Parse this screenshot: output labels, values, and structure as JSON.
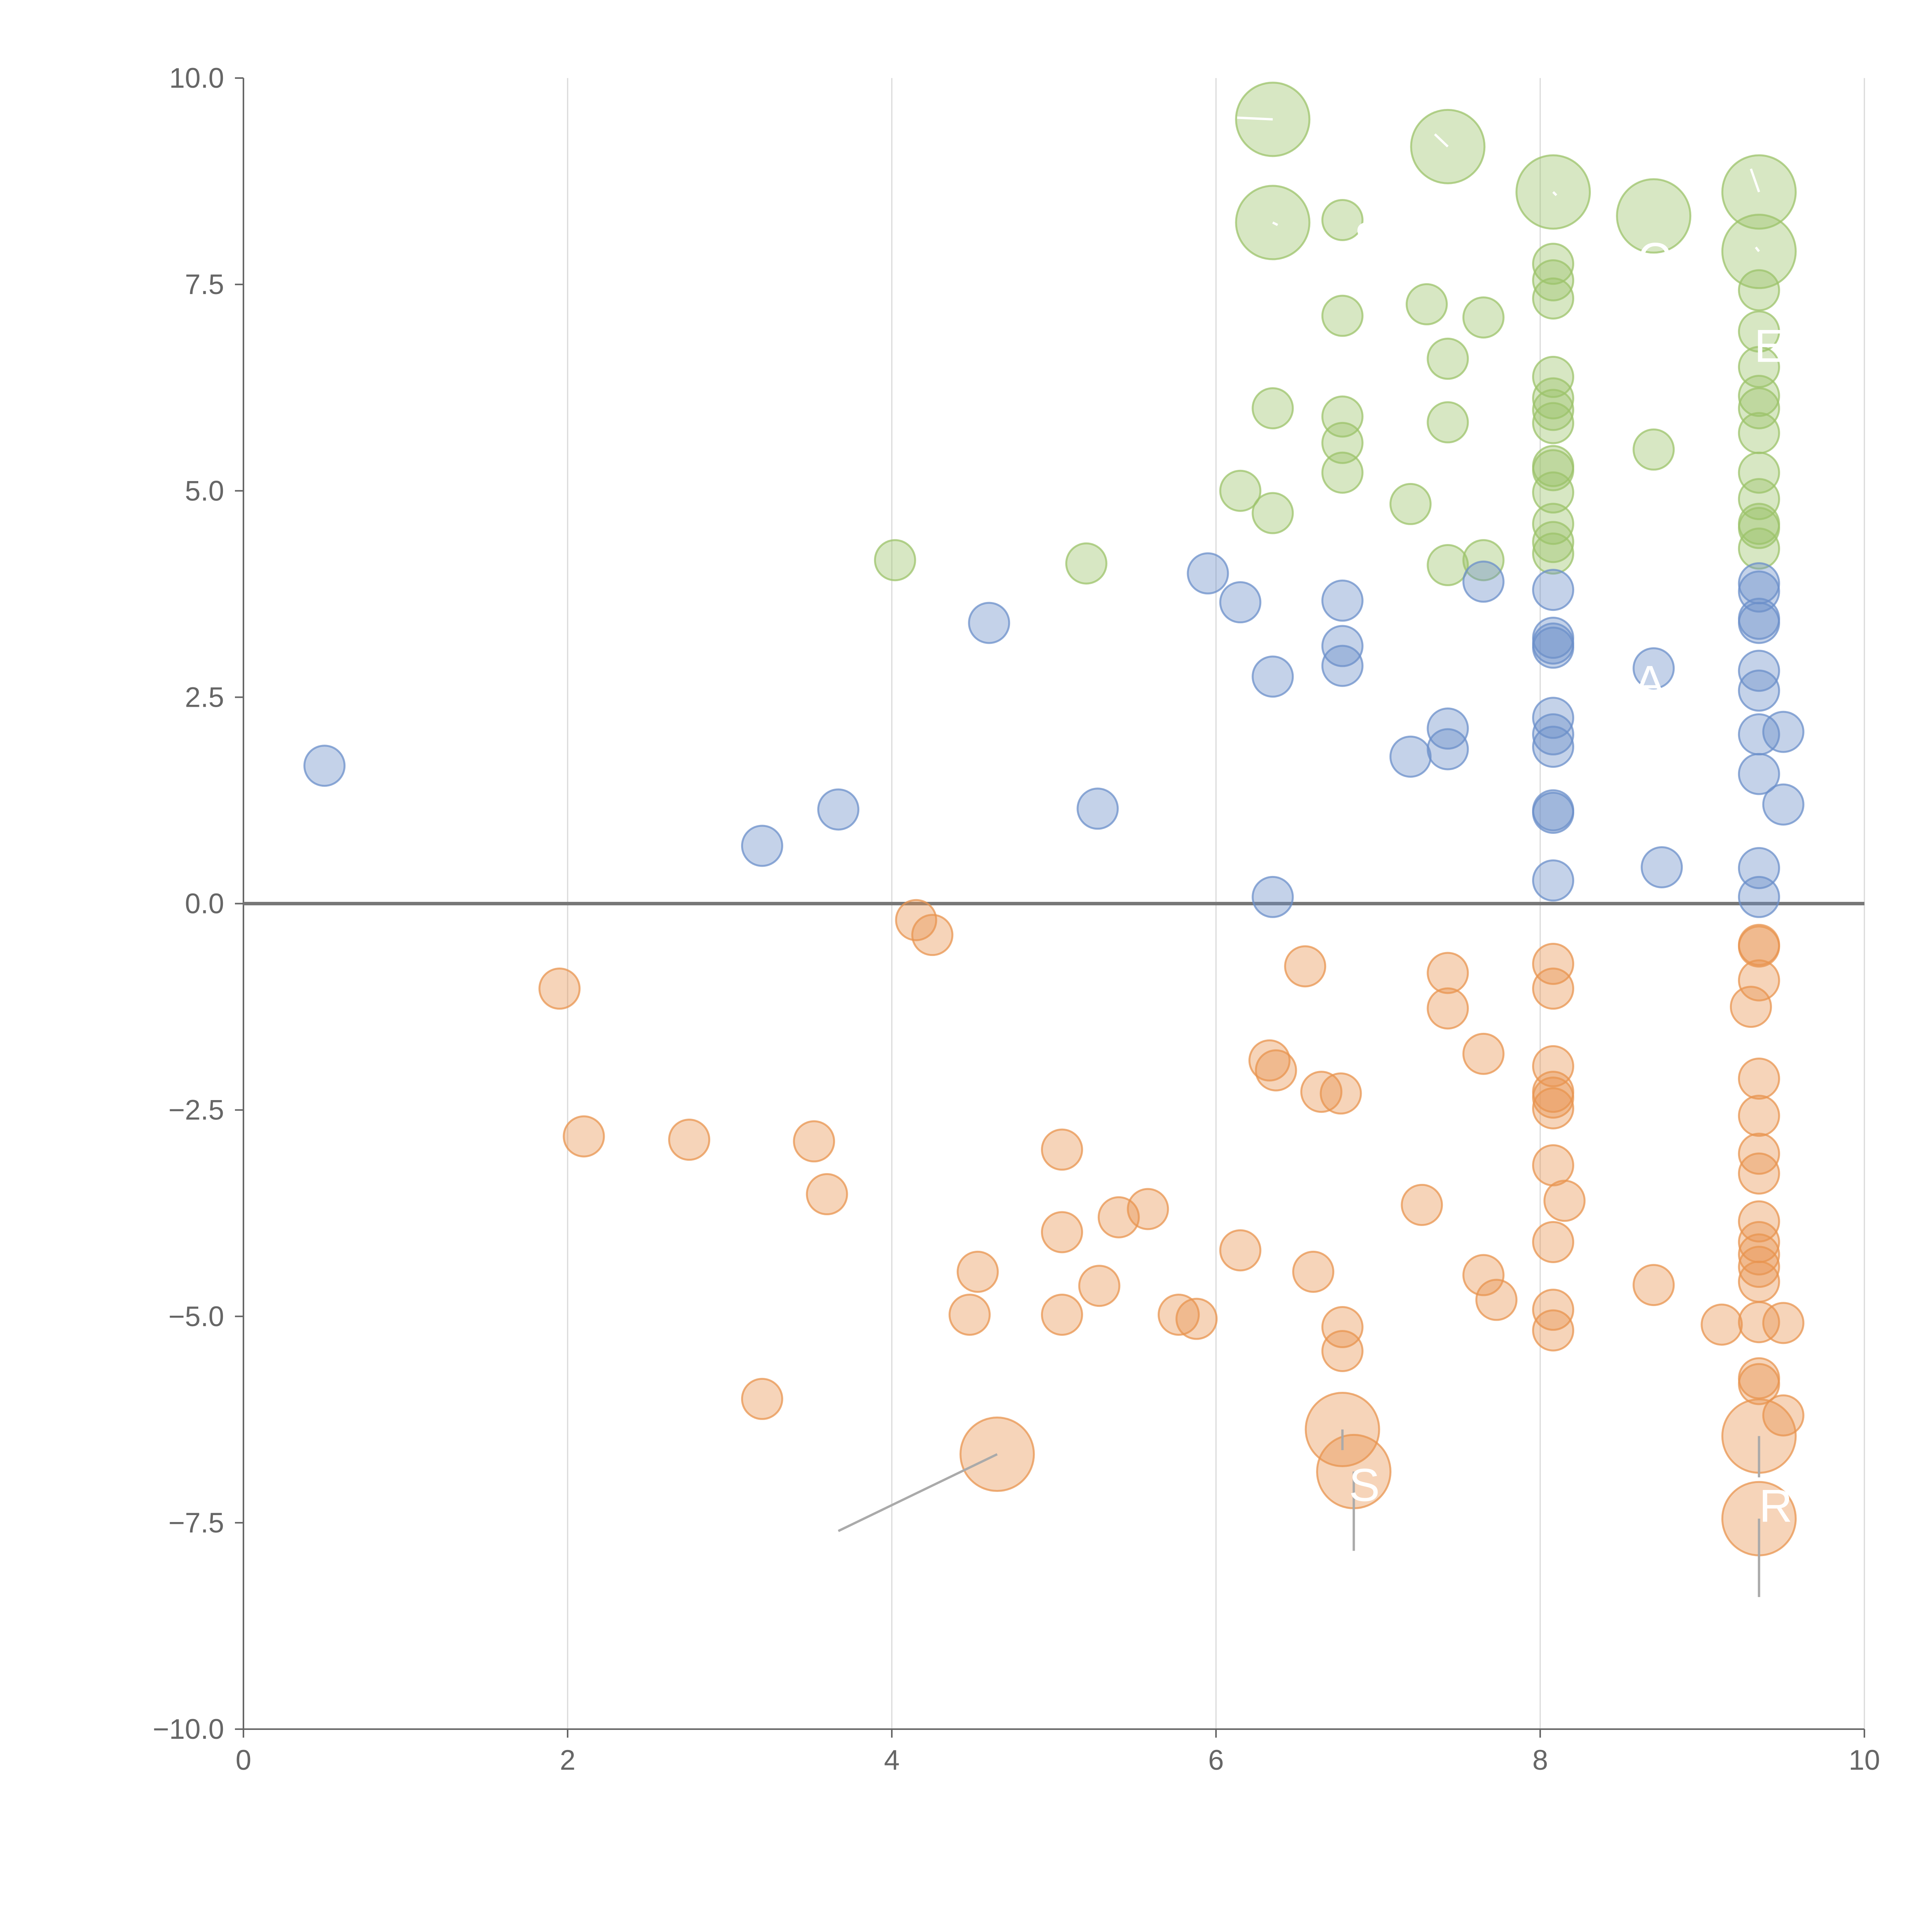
{
  "chart_data": {
    "type": "scatter",
    "title": "",
    "xlabel": "",
    "ylabel": "",
    "xlim": [
      0,
      10
    ],
    "ylim": [
      -10,
      10
    ],
    "x_ticks": [
      0,
      2,
      4,
      6,
      8,
      10
    ],
    "y_ticks": [
      10,
      7.5,
      5,
      2.5,
      0,
      -2.5,
      -5,
      -7.5,
      -10
    ],
    "x_tick_labels": [
      "0",
      "2",
      "4",
      "6",
      "8",
      "10"
    ],
    "y_tick_labels": [
      "10.0",
      "7.5",
      "5.0",
      "2.5",
      "0.0",
      "−2.5",
      "−5.0",
      "−7.5",
      "−10.0"
    ],
    "grid": "vertical",
    "zero_line": true,
    "colors": {
      "green": "#9cc36a",
      "blue": "#6b8fc9",
      "orange": "#e8944f",
      "grid": "#d9d9d9",
      "axis": "#666666"
    },
    "series": [
      {
        "name": "green",
        "color": "#9cc36a",
        "points": [
          [
            7.3,
            7.26
          ],
          [
            5.2,
            4.12
          ],
          [
            4.02,
            4.16
          ],
          [
            6.15,
            5.0
          ],
          [
            6.35,
            4.73
          ],
          [
            6.35,
            6.0
          ],
          [
            6.78,
            5.9
          ],
          [
            6.78,
            5.58
          ],
          [
            6.78,
            5.22
          ],
          [
            6.78,
            7.12
          ],
          [
            6.78,
            8.28
          ],
          [
            7.2,
            4.84
          ],
          [
            7.43,
            4.1
          ],
          [
            7.43,
            5.83
          ],
          [
            7.43,
            6.6
          ],
          [
            7.65,
            4.16
          ],
          [
            7.65,
            7.1
          ],
          [
            8.08,
            7.75
          ],
          [
            8.08,
            7.55
          ],
          [
            8.08,
            7.33
          ],
          [
            8.08,
            6.38
          ],
          [
            8.08,
            6.12
          ],
          [
            8.08,
            5.98
          ],
          [
            8.08,
            5.82
          ],
          [
            8.08,
            5.3
          ],
          [
            8.08,
            5.25
          ],
          [
            8.08,
            4.98
          ],
          [
            8.08,
            4.6
          ],
          [
            8.08,
            4.38
          ],
          [
            8.08,
            4.24
          ],
          [
            8.7,
            5.5
          ],
          [
            9.35,
            7.43
          ],
          [
            9.35,
            6.93
          ],
          [
            9.35,
            6.5
          ],
          [
            9.35,
            6.15
          ],
          [
            9.35,
            6.0
          ],
          [
            9.35,
            5.7
          ],
          [
            9.35,
            5.22
          ],
          [
            9.35,
            4.9
          ],
          [
            9.35,
            4.6
          ],
          [
            9.35,
            4.55
          ],
          [
            9.35,
            4.3
          ]
        ],
        "big_points": [
          [
            6.35,
            9.5
          ],
          [
            6.35,
            8.25
          ],
          [
            7.43,
            9.17
          ],
          [
            8.08,
            8.62
          ],
          [
            8.7,
            8.33
          ],
          [
            9.35,
            8.62
          ],
          [
            9.35,
            7.9
          ]
        ]
      },
      {
        "name": "blue",
        "color": "#6b8fc9",
        "points": [
          [
            0.5,
            1.67
          ],
          [
            3.2,
            0.7
          ],
          [
            3.67,
            1.14
          ],
          [
            4.6,
            3.4
          ],
          [
            5.27,
            1.15
          ],
          [
            5.95,
            4.0
          ],
          [
            6.15,
            3.65
          ],
          [
            6.35,
            2.75
          ],
          [
            6.35,
            0.08
          ],
          [
            6.78,
            3.67
          ],
          [
            6.78,
            3.12
          ],
          [
            6.78,
            2.88
          ],
          [
            7.2,
            1.78
          ],
          [
            7.43,
            2.12
          ],
          [
            7.43,
            1.87
          ],
          [
            7.65,
            3.9
          ],
          [
            8.08,
            3.8
          ],
          [
            8.08,
            3.22
          ],
          [
            8.08,
            3.15
          ],
          [
            8.08,
            3.1
          ],
          [
            8.08,
            2.25
          ],
          [
            8.08,
            2.05
          ],
          [
            8.08,
            1.9
          ],
          [
            8.08,
            1.13
          ],
          [
            8.08,
            1.1
          ],
          [
            8.08,
            0.28
          ],
          [
            8.7,
            2.85
          ],
          [
            8.75,
            0.44
          ],
          [
            9.35,
            3.88
          ],
          [
            9.35,
            3.78
          ],
          [
            9.35,
            3.45
          ],
          [
            9.35,
            3.4
          ],
          [
            9.35,
            2.82
          ],
          [
            9.35,
            2.58
          ],
          [
            9.35,
            2.05
          ],
          [
            9.35,
            1.57
          ],
          [
            9.35,
            0.43
          ],
          [
            9.35,
            0.08
          ],
          [
            9.5,
            2.08
          ],
          [
            9.5,
            1.2
          ]
        ],
        "big_points": []
      },
      {
        "name": "orange",
        "color": "#e8944f",
        "points": [
          [
            1.95,
            -1.03
          ],
          [
            2.1,
            -2.82
          ],
          [
            2.75,
            -2.86
          ],
          [
            3.2,
            -6.0
          ],
          [
            3.52,
            -2.88
          ],
          [
            3.6,
            -3.52
          ],
          [
            4.15,
            -0.2
          ],
          [
            4.25,
            -0.38
          ],
          [
            4.48,
            -4.98
          ],
          [
            4.53,
            -4.46
          ],
          [
            5.05,
            -2.98
          ],
          [
            5.05,
            -3.98
          ],
          [
            5.05,
            -4.98
          ],
          [
            5.28,
            -4.63
          ],
          [
            5.4,
            -3.8
          ],
          [
            5.58,
            -3.7
          ],
          [
            5.77,
            -4.98
          ],
          [
            5.88,
            -5.03
          ],
          [
            6.15,
            -4.2
          ],
          [
            6.33,
            -1.9
          ],
          [
            6.37,
            -2.02
          ],
          [
            6.55,
            -0.76
          ],
          [
            6.6,
            -4.46
          ],
          [
            6.65,
            -2.28
          ],
          [
            6.77,
            -2.3
          ],
          [
            6.78,
            -5.13
          ],
          [
            6.78,
            -5.42
          ],
          [
            7.27,
            -3.65
          ],
          [
            7.43,
            -0.84
          ],
          [
            7.43,
            -1.27
          ],
          [
            7.65,
            -1.82
          ],
          [
            7.65,
            -4.5
          ],
          [
            7.73,
            -4.8
          ],
          [
            8.08,
            -0.73
          ],
          [
            8.08,
            -1.03
          ],
          [
            8.08,
            -1.97
          ],
          [
            8.08,
            -2.28
          ],
          [
            8.08,
            -2.35
          ],
          [
            8.08,
            -2.48
          ],
          [
            8.08,
            -3.17
          ],
          [
            8.08,
            -4.1
          ],
          [
            8.08,
            -4.92
          ],
          [
            8.08,
            -5.17
          ],
          [
            8.15,
            -3.6
          ],
          [
            8.7,
            -4.62
          ],
          [
            9.12,
            -5.1
          ],
          [
            9.3,
            -1.25
          ],
          [
            9.35,
            -0.5
          ],
          [
            9.35,
            -0.52
          ],
          [
            9.35,
            -0.93
          ],
          [
            9.35,
            -2.12
          ],
          [
            9.35,
            -2.57
          ],
          [
            9.35,
            -3.03
          ],
          [
            9.35,
            -3.27
          ],
          [
            9.35,
            -3.85
          ],
          [
            9.35,
            -4.1
          ],
          [
            9.35,
            -4.25
          ],
          [
            9.35,
            -4.4
          ],
          [
            9.35,
            -4.58
          ],
          [
            9.35,
            -5.07
          ],
          [
            9.35,
            -5.75
          ],
          [
            9.35,
            -5.82
          ],
          [
            9.5,
            -5.08
          ],
          [
            9.5,
            -6.2
          ]
        ],
        "big_points": [
          [
            4.65,
            -6.67
          ],
          [
            6.78,
            -6.37
          ],
          [
            6.85,
            -6.88
          ],
          [
            9.35,
            -6.45
          ],
          [
            9.35,
            -7.45
          ]
        ]
      }
    ],
    "annotations": [
      {
        "text": "S",
        "x": 6.85,
        "y": 8.05
      },
      {
        "text": "C…",
        "x": 8.6,
        "y": 7.8
      },
      {
        "text": "E",
        "x": 9.32,
        "y": 6.75
      },
      {
        "text": "A",
        "x": 8.58,
        "y": 2.68
      },
      {
        "text": "S",
        "x": 6.82,
        "y": -7.05
      },
      {
        "text": "R",
        "x": 9.35,
        "y": -7.3
      }
    ],
    "leader_lines": [
      [
        [
          4.65,
          -6.67
        ],
        [
          3.67,
          -7.6
        ]
      ],
      [
        [
          6.78,
          -6.37
        ],
        [
          6.78,
          -6.62
        ]
      ],
      [
        [
          6.85,
          -6.88
        ],
        [
          6.85,
          -7.84
        ]
      ],
      [
        [
          9.35,
          -6.45
        ],
        [
          9.35,
          -6.95
        ]
      ],
      [
        [
          9.35,
          -7.45
        ],
        [
          9.35,
          -8.4
        ]
      ],
      [
        [
          6.35,
          9.5
        ],
        [
          6.13,
          9.52
        ]
      ],
      [
        [
          6.35,
          8.25
        ],
        [
          6.38,
          8.22
        ]
      ],
      [
        [
          7.43,
          9.17
        ],
        [
          7.35,
          9.32
        ]
      ],
      [
        [
          8.08,
          8.62
        ],
        [
          8.1,
          8.58
        ]
      ],
      [
        [
          9.35,
          8.62
        ],
        [
          9.3,
          8.9
        ]
      ],
      [
        [
          9.35,
          7.9
        ],
        [
          9.33,
          7.95
        ]
      ]
    ]
  }
}
